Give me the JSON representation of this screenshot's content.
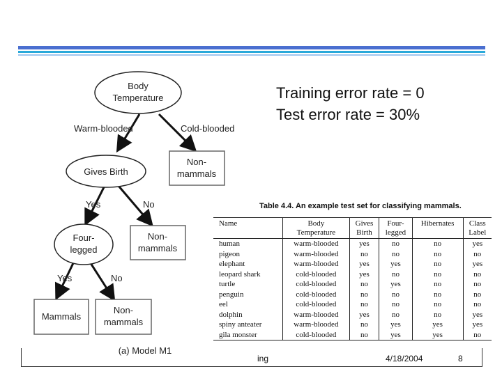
{
  "tree": {
    "root": [
      "Body",
      "Temperature"
    ],
    "edge_warm": "Warm-blooded",
    "edge_cold": "Cold-blooded",
    "gives_birth": "Gives Birth",
    "nonmammals_1": [
      "Non-",
      "mammals"
    ],
    "edge_yes_1": "Yes",
    "edge_no_1": "No",
    "four_legged": [
      "Four-",
      "legged"
    ],
    "nonmammals_2": [
      "Non-",
      "mammals"
    ],
    "edge_yes_2": "Yes",
    "edge_no_2": "No",
    "mammals": "Mammals",
    "nonmammals_3": [
      "Non-",
      "mammals"
    ],
    "caption": "(a) Model M1"
  },
  "errors": {
    "training": "Training error rate = 0",
    "test": "Test error rate = 30%"
  },
  "table": {
    "caption": "Table 4.4.  An example test set for classifying mammals.",
    "headers": [
      [
        "Name",
        ""
      ],
      [
        "Body",
        "Temperature"
      ],
      [
        "Gives",
        "Birth"
      ],
      [
        "Four-",
        "legged"
      ],
      [
        "Hibernates",
        ""
      ],
      [
        "Class",
        "Label"
      ]
    ],
    "rows": [
      [
        "human",
        "warm-blooded",
        "yes",
        "no",
        "no",
        "yes"
      ],
      [
        "pigeon",
        "warm-blooded",
        "no",
        "no",
        "no",
        "no"
      ],
      [
        "elephant",
        "warm-blooded",
        "yes",
        "yes",
        "no",
        "yes"
      ],
      [
        "leopard shark",
        "cold-blooded",
        "yes",
        "no",
        "no",
        "no"
      ],
      [
        "turtle",
        "cold-blooded",
        "no",
        "yes",
        "no",
        "no"
      ],
      [
        "penguin",
        "cold-blooded",
        "no",
        "no",
        "no",
        "no"
      ],
      [
        "eel",
        "cold-blooded",
        "no",
        "no",
        "no",
        "no"
      ],
      [
        "dolphin",
        "warm-blooded",
        "yes",
        "no",
        "no",
        "yes"
      ],
      [
        "spiny anteater",
        "warm-blooded",
        "no",
        "yes",
        "yes",
        "yes"
      ],
      [
        "gila monster",
        "cold-blooded",
        "no",
        "yes",
        "yes",
        "no"
      ]
    ]
  },
  "footer": {
    "left_fragment": "ing",
    "date": "4/18/2004",
    "page": "8"
  },
  "colors": {
    "accent_dark": "#4a6fd0",
    "accent_mid": "#29a9d9",
    "accent_light": "#9ec6ef"
  }
}
